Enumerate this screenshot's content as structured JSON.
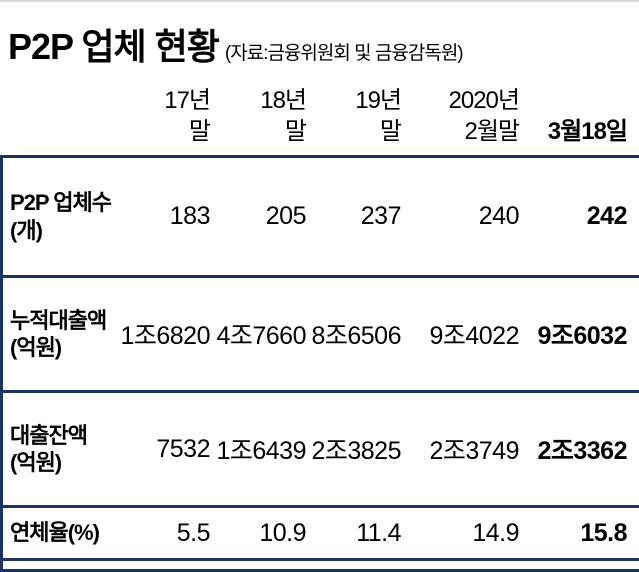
{
  "colors": {
    "rule_navy": "#1c3460",
    "top_hairline": "#d9d9d9",
    "text": "#000000"
  },
  "title": {
    "main": "P2P 업체 현황",
    "source": "(자료:금융위원회 및 금융감독원)"
  },
  "header_cols": [
    {
      "line1": "17년",
      "line2": "말"
    },
    {
      "line1": "18년",
      "line2": "말"
    },
    {
      "line1": "19년",
      "line2": "말"
    },
    {
      "line1": "2020년",
      "line2": "2월말"
    },
    {
      "line1": "",
      "line2": "3월18일"
    }
  ],
  "row_labels": [
    {
      "line1": "P2P 업체수",
      "line2": "(개)"
    },
    {
      "line1": "누적대출액",
      "line2": "(억원)"
    },
    {
      "line1": "대출잔액",
      "line2": "(억원)"
    },
    {
      "line1": "연체율(%)",
      "line2": ""
    }
  ],
  "chart_data": {
    "type": "table",
    "title": "P2P 업체 현황",
    "source": "자료:금융위원회 및 금융감독원",
    "columns": [
      "17년 말",
      "18년 말",
      "19년 말",
      "2020년 2월말",
      "3월18일"
    ],
    "rows": [
      {
        "label": "P2P 업체수(개)",
        "values": [
          "183",
          "205",
          "237",
          "240",
          "242"
        ]
      },
      {
        "label": "누적대출액(억원)",
        "values": [
          "1조6820",
          "4조7660",
          "8조6506",
          "9조4022",
          "9조6032"
        ]
      },
      {
        "label": "대출잔액(억원)",
        "values": [
          "7532",
          "1조6439",
          "2조3825",
          "2조3749",
          "2조3362"
        ]
      },
      {
        "label": "연체율(%)",
        "values": [
          "5.5",
          "10.9",
          "11.4",
          "14.9",
          "15.8"
        ]
      }
    ],
    "notes": "마지막 열(3월18일) 값은 굵게 표시됨"
  }
}
